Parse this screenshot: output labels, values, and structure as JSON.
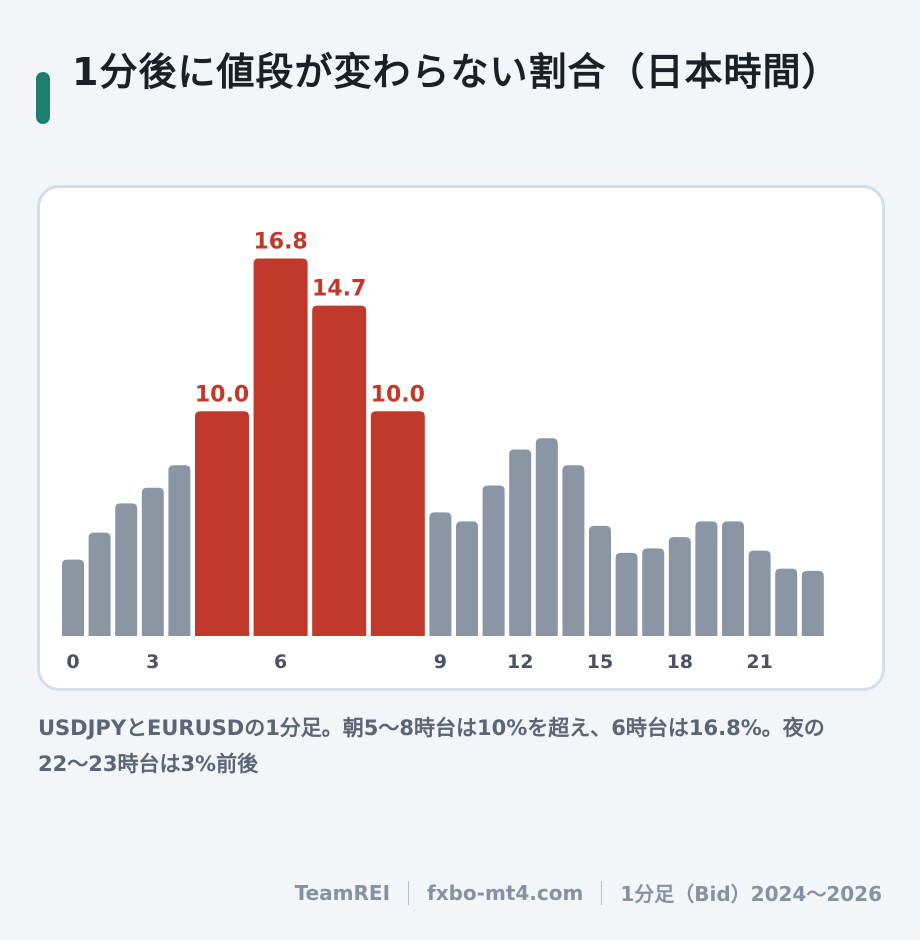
{
  "header": {
    "title": "1分後に値段が変わらない割合（日本時間）"
  },
  "caption": {
    "text": "USDJPYとEURUSDの1分足。朝5〜8時台は10%を超え、6時台は16.8%。夜の22〜23時台は3%前後"
  },
  "footer": {
    "brand": "TeamREI",
    "site": "fxbo-mt4.com",
    "note": "1分足（Bid）2024〜2026"
  },
  "colors": {
    "accent": "#1f7f6e",
    "highlight": "#c0392b",
    "default_bar": "#8a96a3"
  },
  "chart_data": {
    "type": "bar",
    "x_unit": "hour (JST)",
    "categories": [
      0,
      1,
      2,
      3,
      4,
      5,
      6,
      7,
      8,
      9,
      10,
      11,
      12,
      13,
      14,
      15,
      16,
      17,
      18,
      19,
      20,
      21,
      22,
      23
    ],
    "values": [
      3.4,
      4.6,
      5.9,
      6.6,
      7.6,
      10.0,
      16.8,
      14.7,
      10.0,
      5.5,
      5.1,
      6.7,
      8.3,
      8.8,
      7.6,
      4.9,
      3.7,
      3.9,
      4.4,
      5.1,
      5.1,
      3.8,
      3.0,
      2.9
    ],
    "highlighted": [
      5,
      6,
      7,
      8
    ],
    "data_labels": {
      "5": "10.0",
      "6": "16.8",
      "7": "14.7",
      "8": "10.0"
    },
    "x_tick_labels": [
      {
        "hour": 0,
        "label": "0"
      },
      {
        "hour": 3,
        "label": "3"
      },
      {
        "hour": 6,
        "label": "6"
      },
      {
        "hour": 9,
        "label": "9"
      },
      {
        "hour": 12,
        "label": "12"
      },
      {
        "hour": 15,
        "label": "15"
      },
      {
        "hour": 18,
        "label": "18"
      },
      {
        "hour": 21,
        "label": "21"
      }
    ],
    "ylim": [
      0,
      17
    ],
    "grid": false,
    "legend": "none",
    "title": "",
    "xlabel": "",
    "ylabel": ""
  }
}
